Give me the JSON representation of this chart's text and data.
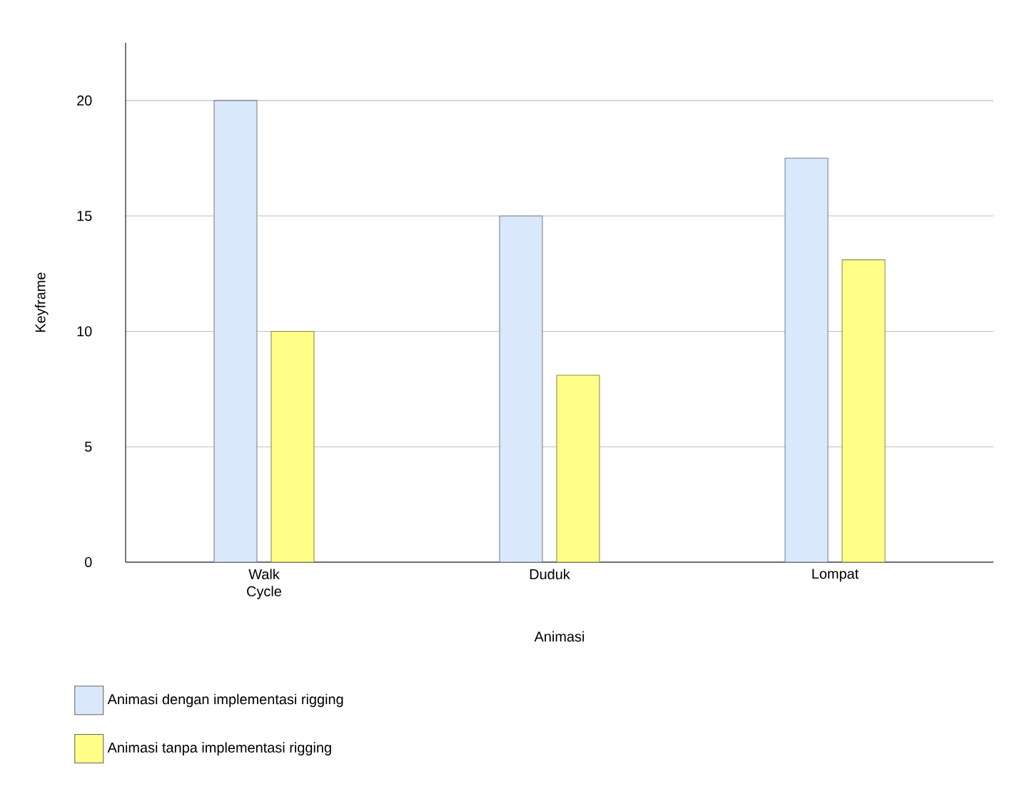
{
  "chart_data": {
    "type": "bar",
    "xlabel": "Animasi",
    "ylabel": "Keyframe",
    "categories": [
      "Walk Cycle",
      "Duduk",
      "Lompat"
    ],
    "series": [
      {
        "name": "Animasi dengan implementasi rigging",
        "color": "#dae8fc",
        "values": [
          20,
          15,
          17.5
        ]
      },
      {
        "name": "Animasi tanpa implementasi rigging",
        "color": "#ffff88",
        "values": [
          10,
          8.1,
          13.1
        ]
      }
    ],
    "ylim": [
      0,
      22.5
    ],
    "yticks": [
      0,
      5,
      10,
      15,
      20
    ],
    "grid": "y",
    "legend": "bottom left"
  }
}
